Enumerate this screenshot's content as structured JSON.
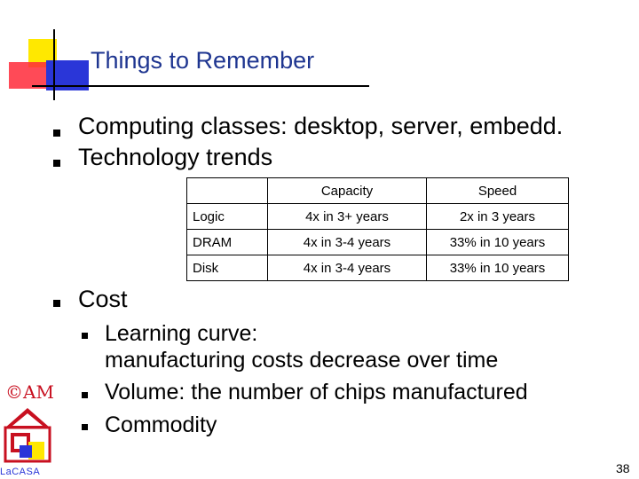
{
  "slide": {
    "title": "Things to Remember",
    "bullets": [
      "Computing classes: desktop, server, embedd.",
      "Technology trends",
      "Cost"
    ],
    "table": {
      "headers": [
        "",
        "Capacity",
        "Speed"
      ],
      "rows": [
        [
          "Logic",
          "4x in 3+ years",
          "2x in 3 years"
        ],
        [
          "DRAM",
          "4x in 3-4 years",
          "33% in 10 years"
        ],
        [
          "Disk",
          "4x in 3-4 years",
          "33% in 10 years"
        ]
      ]
    },
    "cost_subbullets": [
      "Learning curve:",
      "manufacturing costs decrease over time",
      "Volume: the number of chips manufactured",
      "Commodity"
    ],
    "logo": {
      "symbol": "©AM",
      "name": "LaCASA"
    },
    "page_number": "38"
  },
  "colors": {
    "title": "#1e3590",
    "logo_red": "#c81020",
    "logo_blue": "#2a36d8",
    "ornament_yellow": "#ffe800"
  }
}
